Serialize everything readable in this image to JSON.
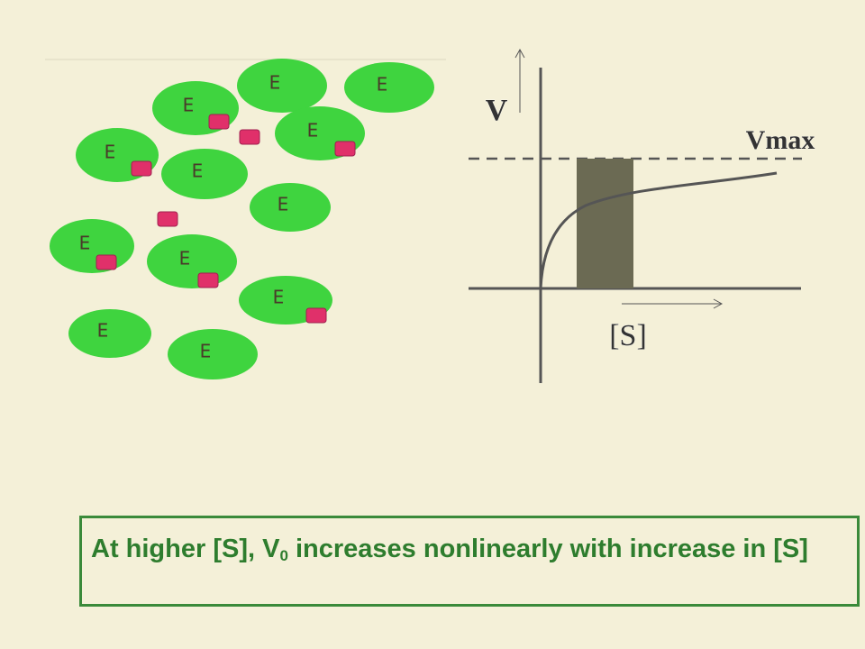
{
  "enzymes": [
    "E",
    "E",
    "E",
    "E",
    "E",
    "E",
    "E",
    "E",
    "E",
    "E",
    "E",
    "E"
  ],
  "graph": {
    "y_label": "V",
    "x_label": "[S]",
    "vmax_label": "Vmax"
  },
  "caption": {
    "before": "At higher [S], V",
    "subscript": "0",
    "after": "increases nonlinearly with increase in [S]"
  }
}
